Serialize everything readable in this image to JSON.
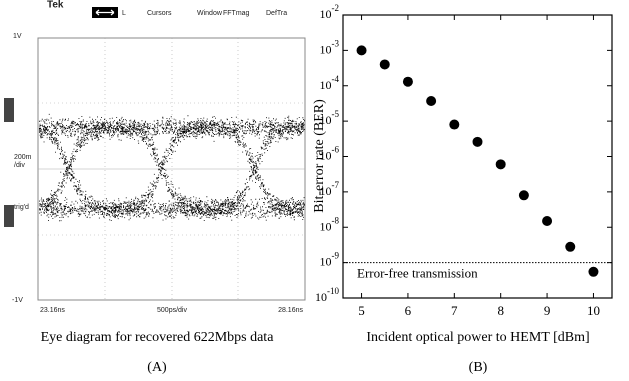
{
  "oscilloscope": {
    "brand": "Tek",
    "menu": [
      "L",
      "Cursors",
      "Window",
      "FFTmag",
      "DefTra"
    ],
    "top_level": "1V",
    "scale": [
      "200m",
      "/div"
    ],
    "trigger": "trig'd",
    "bottom_level": "-1V",
    "time_start": "23.16ns",
    "time_scale": "500ps/div",
    "time_end": "28.16ns"
  },
  "panel_a": {
    "caption": "Eye diagram for recovered 622Mbps data",
    "label": "(A)"
  },
  "panel_b": {
    "label": "(B)"
  },
  "chart_data": {
    "type": "scatter",
    "xlabel": "Incident optical power to HEMT [dBm]",
    "ylabel": "Bit-error rate (BER)",
    "x": [
      5,
      5.5,
      6,
      6.5,
      7,
      7.5,
      8,
      8.5,
      9,
      9.5,
      10
    ],
    "values": [
      0.001,
      0.0004,
      0.00013,
      3.7e-05,
      8e-06,
      2.6e-06,
      6e-07,
      8e-08,
      1.5e-08,
      2.8e-09,
      5.5e-10
    ],
    "color": "#000000",
    "xlim": [
      4.6,
      10.4
    ],
    "xticks": [
      5,
      6,
      7,
      8,
      9,
      10
    ],
    "ylim": [
      1e-10,
      0.01
    ],
    "yscale": "log",
    "yticks": [
      {
        "value": 0.01,
        "label": "10-2"
      },
      {
        "value": 0.001,
        "label": "10-3"
      },
      {
        "value": 0.0001,
        "label": "10-4"
      },
      {
        "value": 1e-05,
        "label": "10-5"
      },
      {
        "value": 1e-06,
        "label": "10-6"
      },
      {
        "value": 1e-07,
        "label": "10-7"
      },
      {
        "value": 1e-08,
        "label": "10-8"
      },
      {
        "value": 1e-09,
        "label": "10-9"
      },
      {
        "value": 1e-10,
        "label": "10-10"
      }
    ],
    "annotations": [
      {
        "text": "Error-free transmission",
        "y": 1e-09
      }
    ]
  }
}
